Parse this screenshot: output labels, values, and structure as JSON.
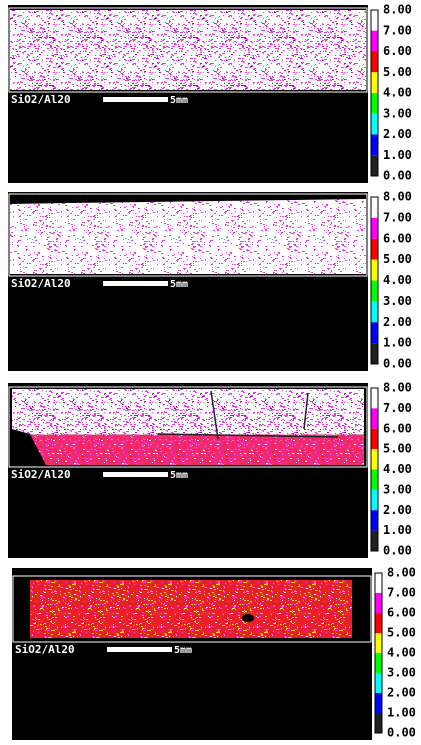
{
  "panels": [
    {
      "label": "SiO2/Al20",
      "scale": "5mm",
      "colorbar": [
        "8.00",
        "7.00",
        "6.00",
        "5.00",
        "4.00",
        "3.00",
        "2.00",
        "1.00",
        "0.00"
      ]
    },
    {
      "label": "SiO2/Al20",
      "scale": "5mm",
      "colorbar": [
        "8.00",
        "7.00",
        "6.00",
        "5.00",
        "4.00",
        "3.00",
        "2.00",
        "1.00",
        "0.00"
      ]
    },
    {
      "label": "SiO2/Al20",
      "scale": "5mm",
      "colorbar": [
        "8.00",
        "7.00",
        "6.00",
        "5.00",
        "4.00",
        "3.00",
        "2.00",
        "1.00",
        "0.00"
      ]
    },
    {
      "label": "SiO2/Al20",
      "scale": "5mm",
      "colorbar": [
        "8.00",
        "7.00",
        "6.00",
        "5.00",
        "4.00",
        "3.00",
        "2.00",
        "1.00",
        "0.00"
      ]
    }
  ]
}
